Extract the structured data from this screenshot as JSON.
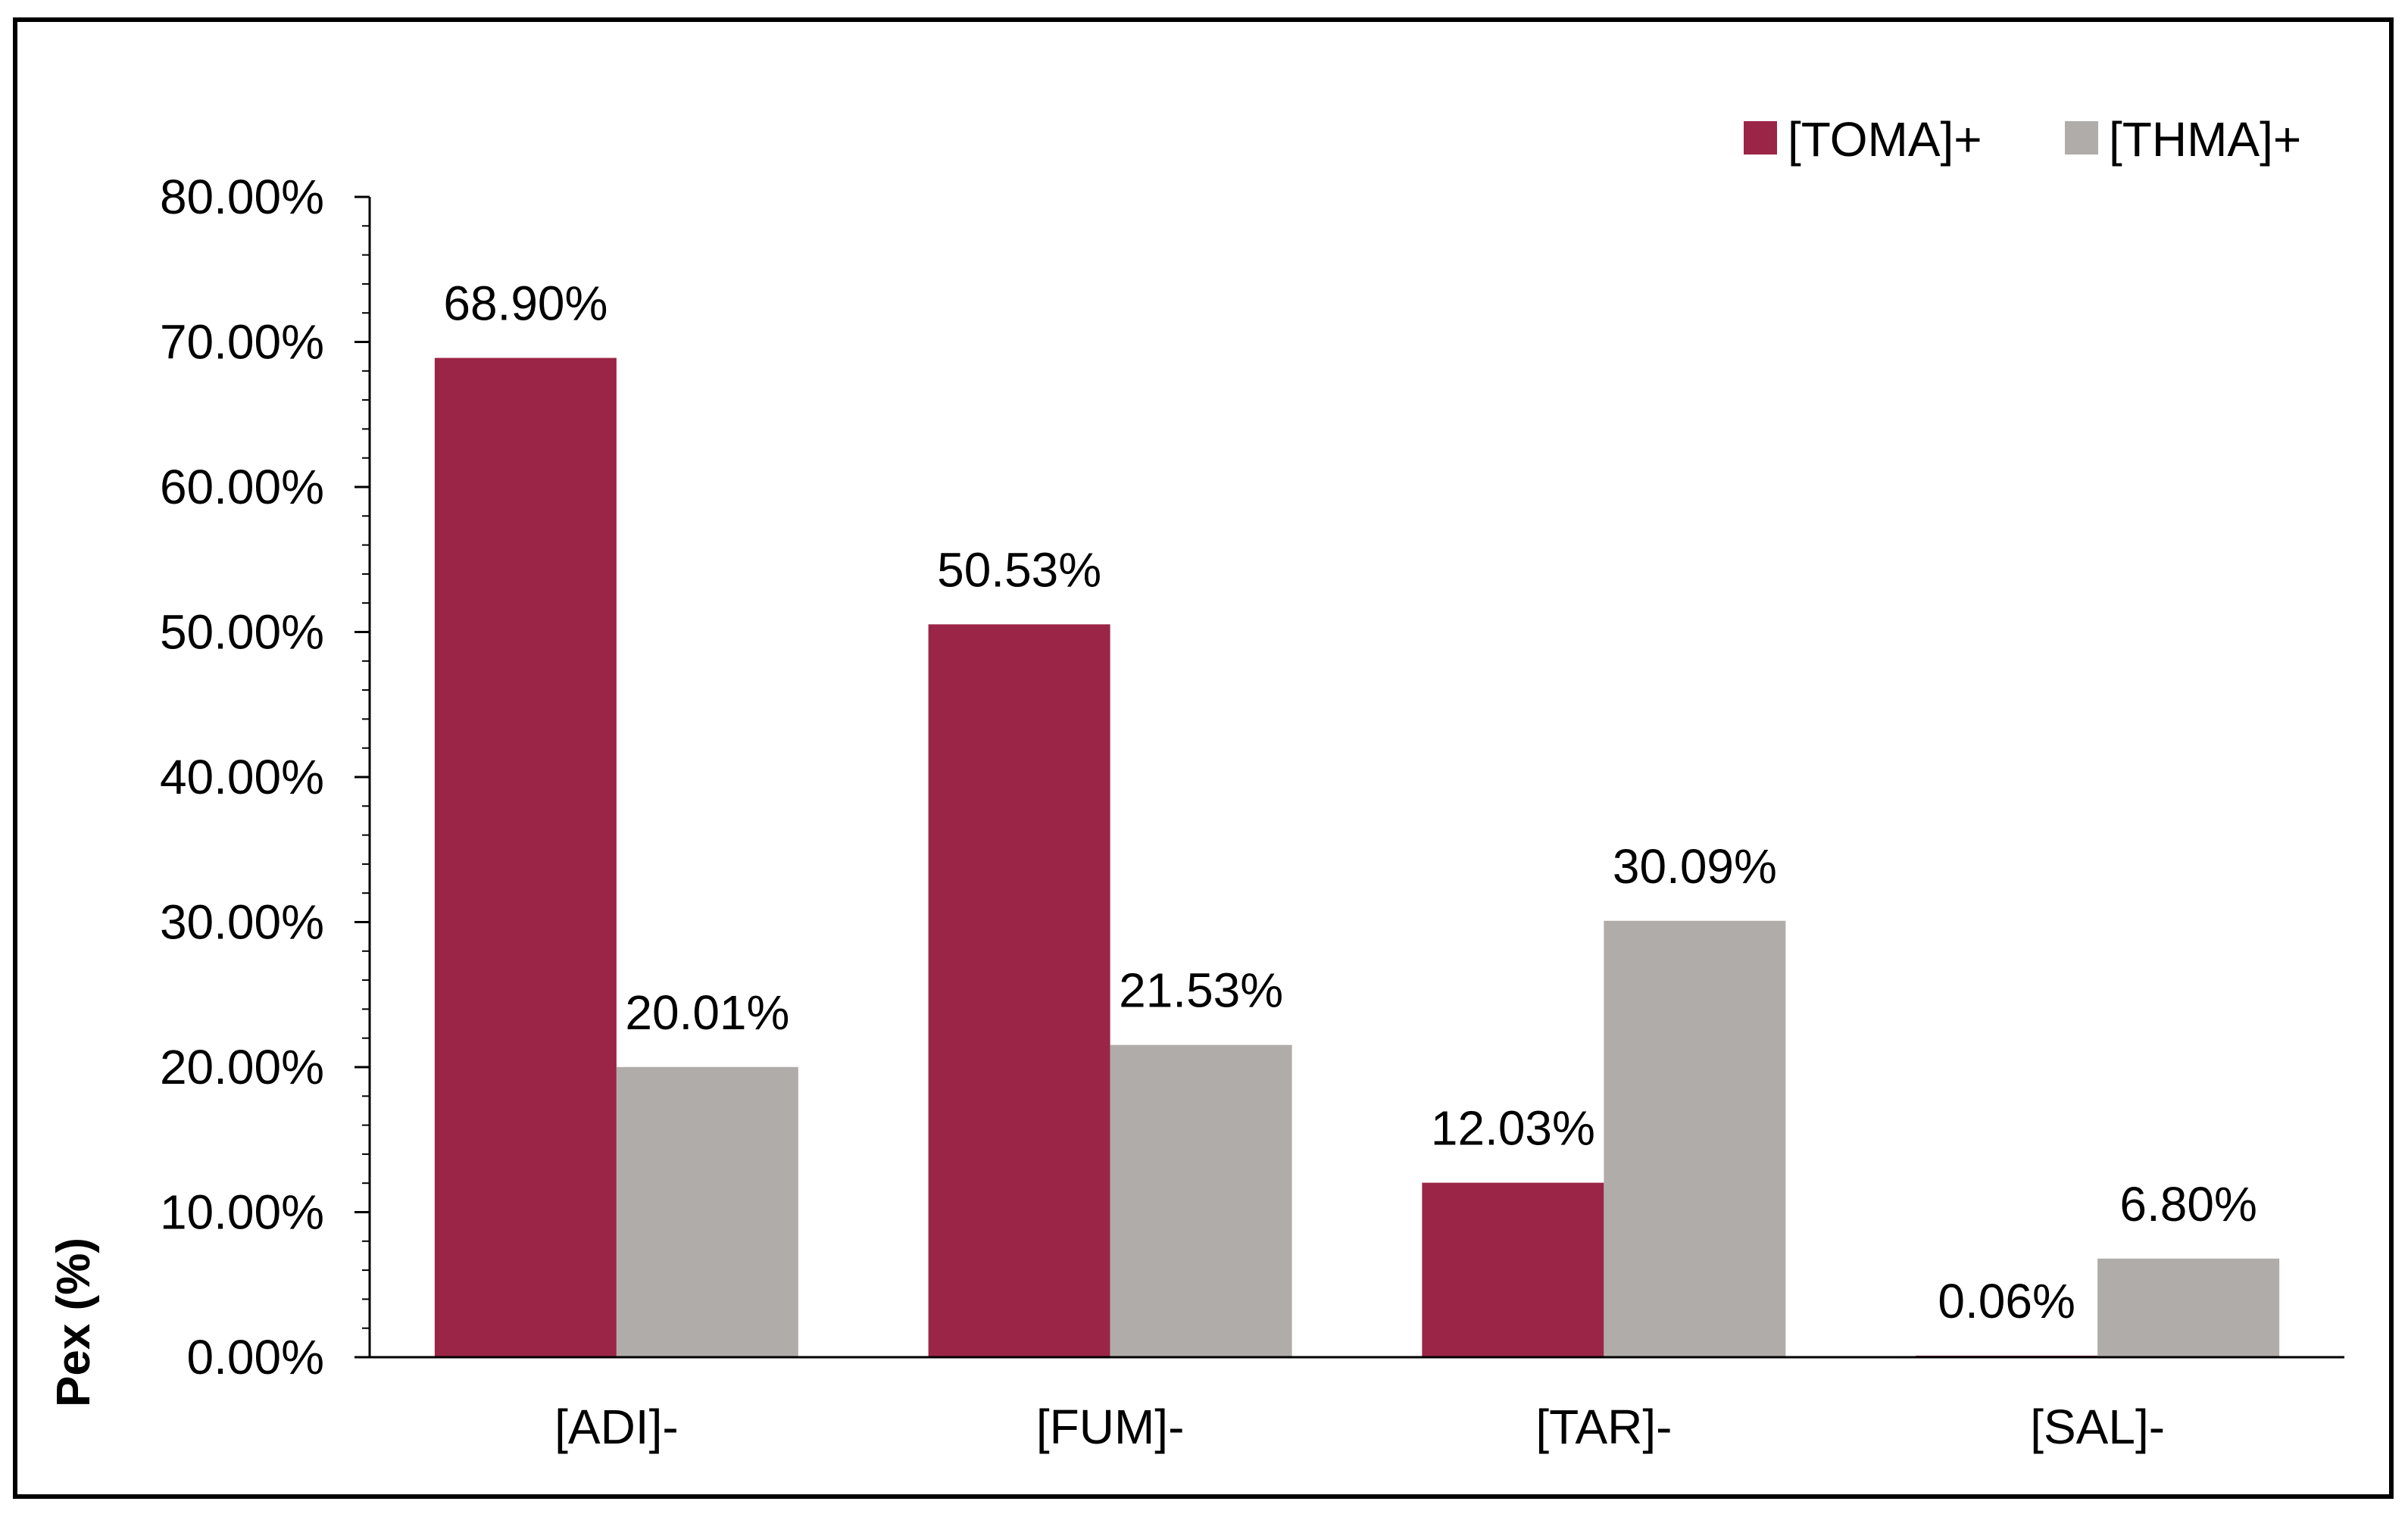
{
  "chart_data": {
    "type": "bar",
    "categories": [
      "[ADI]-",
      "[FUM]-",
      "[TAR]-",
      "[SAL]-"
    ],
    "series": [
      {
        "name": "[TOMA]+",
        "color": "#9b2547",
        "values": [
          68.9,
          50.53,
          12.03,
          0.06
        ],
        "labels": [
          "68.90%",
          "50.53%",
          "12.03%",
          "0.06%"
        ]
      },
      {
        "name": "[THMA]+",
        "color": "#b0acaa",
        "values": [
          20.01,
          21.53,
          30.09,
          6.8
        ],
        "labels": [
          "20.01%",
          "21.53%",
          "30.09%",
          "6.80%"
        ]
      }
    ],
    "ylabel": "Pex (%)",
    "xlabel": "",
    "ylim": [
      0,
      80
    ],
    "yticks": [
      0,
      10,
      20,
      30,
      40,
      50,
      60,
      70,
      80
    ],
    "ytick_labels": [
      "0.00%",
      "10.00%",
      "20.00%",
      "30.00%",
      "40.00%",
      "50.00%",
      "60.00%",
      "70.00%",
      "80.00%"
    ],
    "grid": false,
    "legend_position": "top-right"
  }
}
